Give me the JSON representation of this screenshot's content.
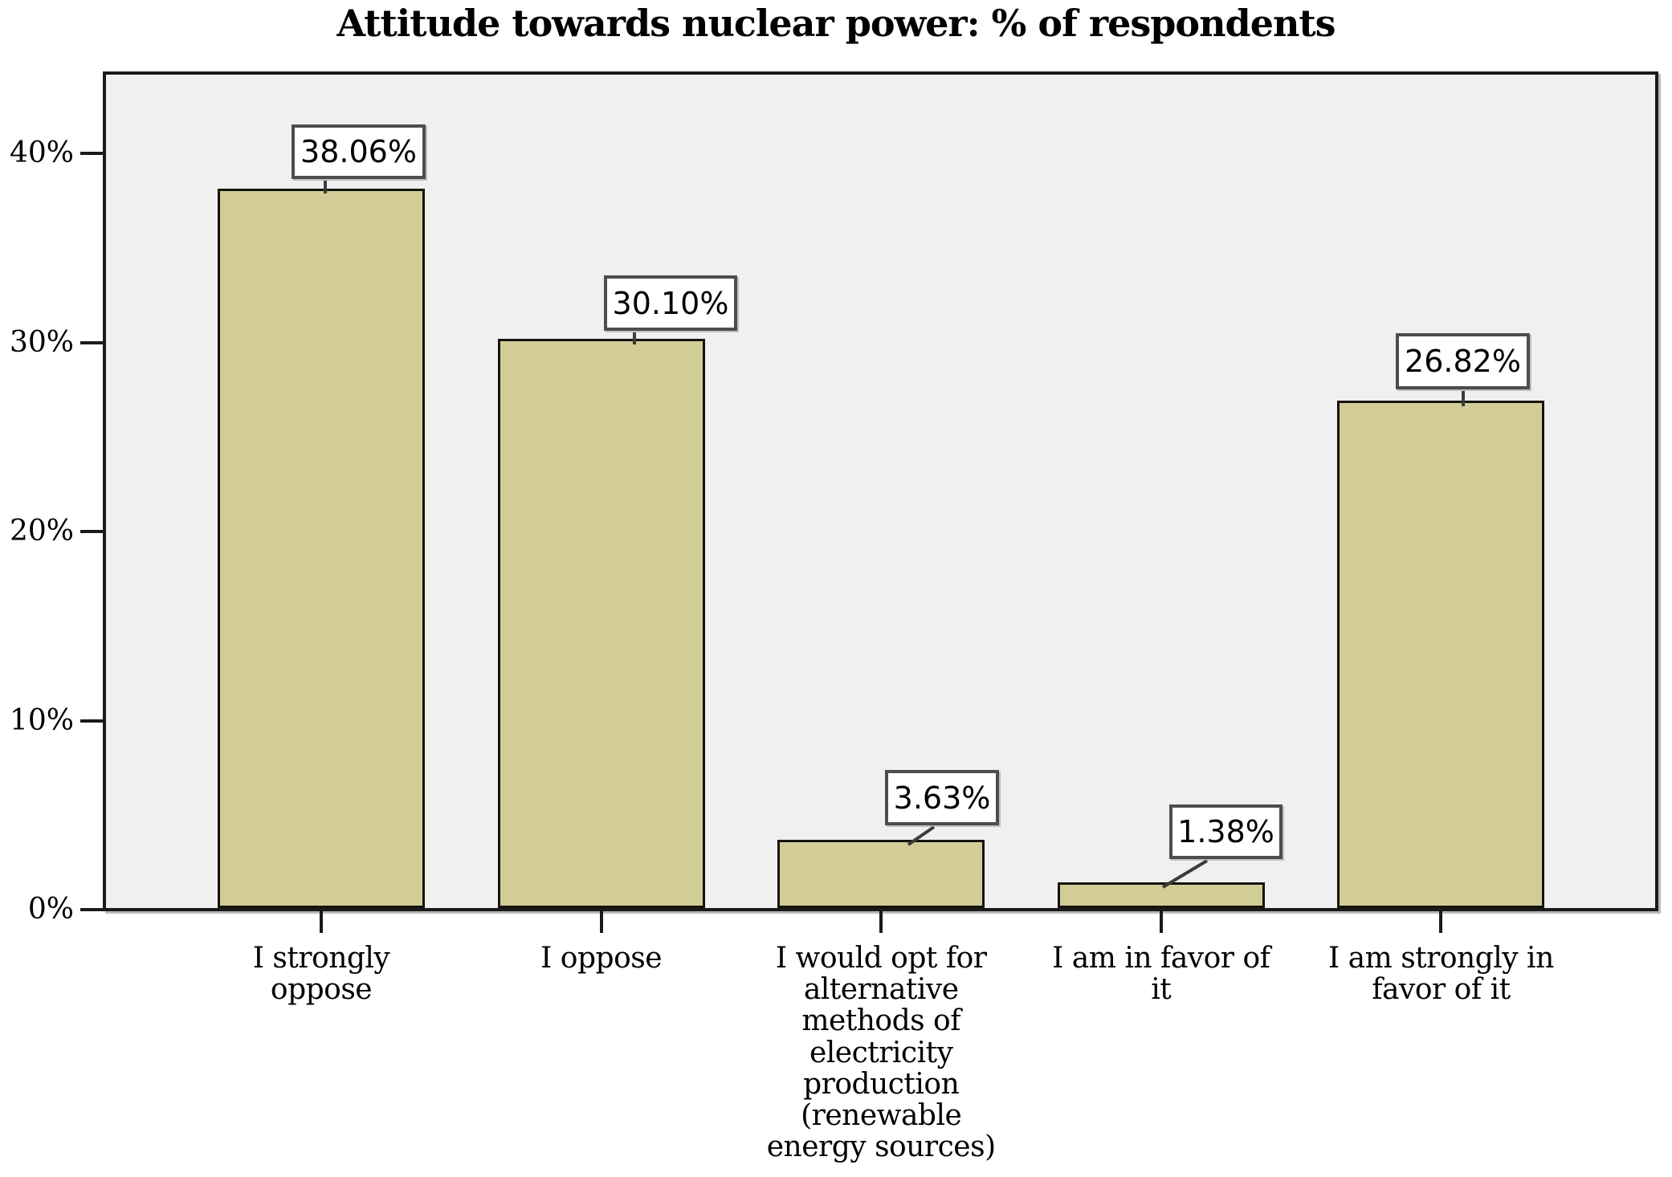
{
  "chart_data": {
    "type": "bar",
    "title": "Attitude towards nuclear power: % of respondents",
    "categories": [
      "I strongly oppose",
      "I oppose",
      "I would opt for alternative methods of electricity production (renewable energy sources)",
      "I am in favor of it",
      "I am strongly in favor of it"
    ],
    "category_lines": [
      [
        "I strongly",
        "oppose"
      ],
      [
        "I oppose"
      ],
      [
        "I would opt for",
        "alternative",
        "methods of",
        "electricity",
        "production",
        "(renewable",
        "energy sources)"
      ],
      [
        "I am in favor of",
        "it"
      ],
      [
        "I am strongly in",
        "favor of it"
      ]
    ],
    "values": [
      38.06,
      30.1,
      3.63,
      1.38,
      26.82
    ],
    "value_labels": [
      "38.06%",
      "30.10%",
      "3.63%",
      "1.38%",
      "26.82%"
    ],
    "y_ticks": [
      "0%",
      "10%",
      "20%",
      "30%",
      "40%"
    ],
    "ylim": [
      0,
      44.4
    ],
    "xlabel": "",
    "ylabel": "",
    "grid": false,
    "legend": "none",
    "colors": {
      "bar_fill": "#D2CD96",
      "bar_border": "#14140A",
      "plot_bg": "#F0F0F0",
      "axis": "#1A1A1A",
      "label_box_bg": "#FFFFFF",
      "label_box_border": "#4D4D4D",
      "connector": "#3C3C3C",
      "text": "#000000"
    }
  }
}
